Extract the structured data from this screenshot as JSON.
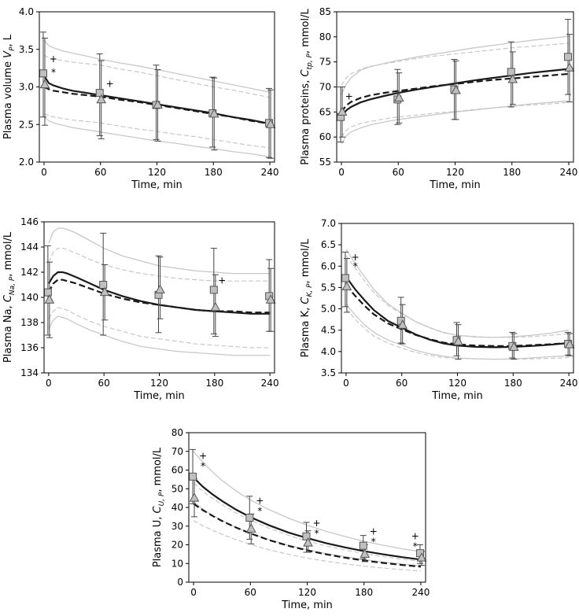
{
  "chart_data": [
    {
      "id": "vp",
      "type": "line",
      "ylabel": "Plasma volume Vₚ, L",
      "ylabel_base": "Plasma volume ",
      "ylabel_var": "V",
      "ylabel_sub": "P",
      "ylabel_tail": ", L",
      "xlabel": "Time, min",
      "xlim": [
        -5,
        245
      ],
      "ylim": [
        2.0,
        4.0
      ],
      "xticks": [
        0,
        60,
        120,
        180,
        240
      ],
      "yticks": [
        2.0,
        2.5,
        3.0,
        3.5,
        4.0
      ],
      "ytick_labels": [
        "2.0",
        "2.5",
        "3.0",
        "3.5",
        "4.0"
      ],
      "curves": {
        "x": [
          0,
          5,
          10,
          20,
          30,
          45,
          60,
          80,
          100,
          120,
          140,
          160,
          180,
          200,
          220,
          240
        ],
        "group1_mean": [
          3.15,
          3.05,
          3.02,
          2.98,
          2.95,
          2.92,
          2.89,
          2.85,
          2.81,
          2.77,
          2.73,
          2.69,
          2.65,
          2.6,
          2.56,
          2.51
        ],
        "group1_upper": [
          3.62,
          3.55,
          3.52,
          3.48,
          3.45,
          3.41,
          3.37,
          3.32,
          3.28,
          3.23,
          3.18,
          3.13,
          3.08,
          3.03,
          2.98,
          2.93
        ],
        "group1_lower": [
          2.6,
          2.55,
          2.52,
          2.49,
          2.46,
          2.43,
          2.4,
          2.36,
          2.32,
          2.28,
          2.25,
          2.21,
          2.18,
          2.14,
          2.11,
          2.07
        ],
        "group2_mean": [
          3.0,
          2.97,
          2.95,
          2.93,
          2.91,
          2.89,
          2.87,
          2.83,
          2.8,
          2.76,
          2.72,
          2.68,
          2.64,
          2.6,
          2.55,
          2.51
        ],
        "group2_upper": [
          3.42,
          3.39,
          3.37,
          3.35,
          3.33,
          3.31,
          3.29,
          3.24,
          3.2,
          3.15,
          3.1,
          3.05,
          3.0,
          2.96,
          2.91,
          2.86
        ],
        "group2_lower": [
          2.64,
          2.62,
          2.6,
          2.58,
          2.56,
          2.54,
          2.52,
          2.48,
          2.44,
          2.41,
          2.37,
          2.34,
          2.3,
          2.26,
          2.22,
          2.19
        ]
      },
      "square_points": {
        "x": [
          0,
          60,
          120,
          180,
          240
        ],
        "y": [
          3.18,
          2.92,
          2.76,
          2.65,
          2.52
        ],
        "err_low": [
          2.6,
          2.35,
          2.3,
          2.2,
          2.06
        ],
        "err_high": [
          3.73,
          3.44,
          3.29,
          3.13,
          2.98
        ]
      },
      "triangle_points": {
        "x": [
          0,
          60,
          120,
          180,
          240
        ],
        "y": [
          3.03,
          2.83,
          2.76,
          2.64,
          2.5
        ],
        "err_low": [
          2.49,
          2.31,
          2.28,
          2.16,
          2.05
        ],
        "err_high": [
          3.65,
          3.35,
          3.23,
          3.12,
          2.96
        ]
      },
      "annotations": [
        {
          "text": "+",
          "x": 10,
          "y": 3.33
        },
        {
          "text": "*",
          "x": 10,
          "y": 3.15
        },
        {
          "text": "+",
          "x": 70,
          "y": 3.0
        }
      ]
    },
    {
      "id": "ctp",
      "type": "line",
      "ylabel": "Plasma proteins, Cₜₚ,P, mmol/L",
      "ylabel_base": "Plasma proteins, ",
      "ylabel_var": "C",
      "ylabel_sub": "tp, P",
      "ylabel_tail": ", mmol/L",
      "xlabel": "Time, min",
      "xlim": [
        -5,
        245
      ],
      "ylim": [
        55,
        85
      ],
      "xticks": [
        0,
        60,
        120,
        180,
        240
      ],
      "yticks": [
        55,
        60,
        65,
        70,
        75,
        80,
        85
      ],
      "ytick_labels": [
        "55",
        "60",
        "65",
        "70",
        "75",
        "80",
        "85"
      ],
      "curves": {
        "x": [
          0,
          5,
          10,
          20,
          30,
          45,
          60,
          80,
          100,
          120,
          140,
          160,
          180,
          200,
          220,
          240
        ],
        "group1_mean": [
          63.8,
          65.3,
          66.0,
          66.9,
          67.5,
          68.2,
          68.8,
          69.5,
          70.1,
          70.7,
          71.3,
          71.8,
          72.3,
          72.8,
          73.2,
          73.6
        ],
        "group1_upper": [
          68.5,
          70.5,
          71.8,
          73.3,
          74.0,
          74.7,
          75.3,
          76.0,
          76.6,
          77.2,
          77.8,
          78.3,
          78.8,
          79.3,
          79.7,
          80.1
        ],
        "group1_lower": [
          58.6,
          60.2,
          61.0,
          61.8,
          62.4,
          63.0,
          63.5,
          64.0,
          64.5,
          65.0,
          65.4,
          65.8,
          66.2,
          66.6,
          66.9,
          67.2
        ],
        "group2_mean": [
          65.0,
          66.3,
          67.0,
          67.8,
          68.3,
          68.8,
          69.2,
          69.7,
          70.2,
          70.6,
          71.0,
          71.4,
          71.7,
          72.0,
          72.3,
          72.6
        ],
        "group2_upper": [
          70.3,
          71.8,
          72.6,
          73.5,
          74.1,
          74.6,
          75.1,
          75.7,
          76.2,
          76.6,
          77.0,
          77.4,
          77.8,
          78.1,
          78.4,
          78.7
        ],
        "group2_lower": [
          60.0,
          61.3,
          62.0,
          62.7,
          63.1,
          63.6,
          64.0,
          64.4,
          64.8,
          65.1,
          65.5,
          65.8,
          66.1,
          66.4,
          66.6,
          66.9
        ]
      },
      "square_points": {
        "x": [
          0,
          60,
          120,
          180,
          240
        ],
        "y": [
          64.0,
          67.5,
          69.5,
          73.0,
          76.0
        ],
        "err_low": [
          59.0,
          62.5,
          63.5,
          66.0,
          68.5
        ],
        "err_high": [
          70.0,
          73.5,
          75.5,
          79.0,
          83.5
        ]
      },
      "triangle_points": {
        "x": [
          0,
          60,
          120,
          180,
          240
        ],
        "y": [
          65.0,
          67.8,
          69.3,
          71.5,
          73.8
        ],
        "err_low": [
          60.0,
          62.8,
          63.5,
          66.5,
          67.0
        ],
        "err_high": [
          70.0,
          72.8,
          75.2,
          77.0,
          80.5
        ]
      },
      "annotations": [
        {
          "text": "+",
          "x": 8,
          "y": 67.5
        }
      ]
    },
    {
      "id": "cna",
      "type": "line",
      "ylabel": "Plasma Na, C_Na,P, mmol/L",
      "ylabel_base": "Plasma Na, ",
      "ylabel_var": "C",
      "ylabel_sub": "Na, P",
      "ylabel_tail": ", mmol/L",
      "xlabel": "Time, min",
      "xlim": [
        -5,
        245
      ],
      "ylim": [
        134,
        146
      ],
      "xticks": [
        0,
        60,
        120,
        180,
        240
      ],
      "yticks": [
        134,
        136,
        138,
        140,
        142,
        144,
        146
      ],
      "ytick_labels": [
        "134",
        "136",
        "138",
        "140",
        "142",
        "144",
        "146"
      ],
      "curves": {
        "x": [
          0,
          5,
          10,
          15,
          20,
          30,
          45,
          60,
          80,
          100,
          120,
          140,
          160,
          180,
          200,
          220,
          240
        ],
        "group1_mean": [
          141.1,
          141.7,
          142.0,
          142.0,
          141.9,
          141.6,
          141.1,
          140.6,
          140.1,
          139.7,
          139.4,
          139.2,
          139.0,
          138.9,
          138.8,
          138.7,
          138.7
        ],
        "group1_upper": [
          144.3,
          145.2,
          145.5,
          145.5,
          145.4,
          145.1,
          144.5,
          143.9,
          143.3,
          142.9,
          142.5,
          142.3,
          142.1,
          142.0,
          141.9,
          141.9,
          141.9
        ],
        "group1_lower": [
          137.5,
          138.2,
          138.5,
          138.4,
          138.3,
          137.9,
          137.4,
          137.0,
          136.5,
          136.1,
          135.9,
          135.7,
          135.6,
          135.5,
          135.4,
          135.4,
          135.4
        ],
        "group2_mean": [
          140.4,
          141.1,
          141.4,
          141.4,
          141.3,
          141.1,
          140.7,
          140.3,
          139.9,
          139.6,
          139.4,
          139.2,
          139.0,
          138.9,
          138.9,
          138.8,
          138.8
        ],
        "group2_upper": [
          142.8,
          143.6,
          143.9,
          143.9,
          143.8,
          143.5,
          143.0,
          142.6,
          142.2,
          141.9,
          141.7,
          141.5,
          141.4,
          141.3,
          141.3,
          141.3,
          141.3
        ],
        "group2_lower": [
          138.3,
          138.9,
          139.2,
          139.1,
          139.0,
          138.6,
          138.1,
          137.7,
          137.3,
          136.9,
          136.7,
          136.5,
          136.3,
          136.2,
          136.1,
          136.0,
          136.0
        ]
      },
      "square_points": {
        "x": [
          0,
          60,
          120,
          180,
          240
        ],
        "y": [
          140.4,
          141.0,
          140.2,
          140.6,
          140.1
        ],
        "err_low": [
          137.0,
          137.0,
          137.2,
          137.1,
          137.3
        ],
        "err_high": [
          144.1,
          145.1,
          143.3,
          143.9,
          143.0
        ]
      },
      "triangle_points": {
        "x": [
          0,
          60,
          120,
          180,
          240
        ],
        "y": [
          139.8,
          140.4,
          140.6,
          139.2,
          139.8
        ],
        "err_low": [
          136.8,
          138.2,
          138.3,
          136.9,
          137.3
        ],
        "err_high": [
          142.8,
          142.6,
          143.2,
          141.8,
          142.3
        ]
      },
      "annotations": [
        {
          "text": "+",
          "x": 188,
          "y": 141.1
        }
      ]
    },
    {
      "id": "ck",
      "type": "line",
      "ylabel": "Plasma K, C_K,P, mmol/L",
      "ylabel_base": "Plasma K, ",
      "ylabel_var": "C",
      "ylabel_sub": "K, P",
      "ylabel_tail": ", mmol/L",
      "xlabel": "Time, min",
      "xlim": [
        -5,
        245
      ],
      "ylim": [
        3.5,
        7.0
      ],
      "xticks": [
        0,
        60,
        120,
        180,
        240
      ],
      "yticks": [
        3.5,
        4.0,
        4.5,
        5.0,
        5.5,
        6.0,
        6.5,
        7.0
      ],
      "ytick_labels": [
        "3.5",
        "4.0",
        "4.5",
        "5.0",
        "5.5",
        "6.0",
        "6.5",
        "7.0"
      ],
      "curves": {
        "x": [
          0,
          10,
          20,
          30,
          45,
          60,
          75,
          90,
          105,
          120,
          140,
          160,
          180,
          200,
          220,
          240
        ],
        "group1_mean": [
          5.75,
          5.45,
          5.2,
          4.97,
          4.72,
          4.56,
          4.4,
          4.28,
          4.19,
          4.14,
          4.11,
          4.1,
          4.11,
          4.13,
          4.16,
          4.2
        ],
        "group1_upper": [
          6.4,
          6.05,
          5.75,
          5.45,
          5.12,
          4.9,
          4.7,
          4.56,
          4.44,
          4.38,
          4.34,
          4.33,
          4.35,
          4.38,
          4.43,
          4.5
        ],
        "group1_lower": [
          5.1,
          4.85,
          4.62,
          4.45,
          4.27,
          4.15,
          4.03,
          3.95,
          3.89,
          3.85,
          3.83,
          3.82,
          3.83,
          3.85,
          3.88,
          3.9
        ],
        "group2_mean": [
          5.55,
          5.3,
          5.07,
          4.87,
          4.66,
          4.52,
          4.39,
          4.29,
          4.21,
          4.17,
          4.14,
          4.13,
          4.13,
          4.15,
          4.17,
          4.2
        ],
        "group2_upper": [
          6.25,
          5.95,
          5.65,
          5.38,
          5.08,
          4.88,
          4.7,
          4.56,
          4.45,
          4.38,
          4.35,
          4.33,
          4.33,
          4.35,
          4.38,
          4.42
        ],
        "group2_lower": [
          5.0,
          4.75,
          4.54,
          4.36,
          4.2,
          4.08,
          3.98,
          3.91,
          3.86,
          3.84,
          3.83,
          3.82,
          3.82,
          3.83,
          3.84,
          3.86
        ]
      },
      "square_points": {
        "x": [
          0,
          60,
          120,
          180,
          240
        ],
        "y": [
          5.72,
          4.72,
          4.27,
          4.13,
          4.18
        ],
        "err_low": [
          5.05,
          4.2,
          3.9,
          3.85,
          3.92
        ],
        "err_high": [
          6.33,
          5.27,
          4.68,
          4.45,
          4.45
        ]
      },
      "triangle_points": {
        "x": [
          0,
          60,
          120,
          180,
          240
        ],
        "y": [
          5.52,
          4.62,
          4.23,
          4.1,
          4.16
        ],
        "err_low": [
          4.92,
          4.18,
          3.82,
          3.82,
          3.9
        ],
        "err_high": [
          6.18,
          5.1,
          4.63,
          4.42,
          4.42
        ]
      },
      "annotations": [
        {
          "text": "+",
          "x": 10,
          "y": 6.13
        },
        {
          "text": "*",
          "x": 10,
          "y": 5.92
        }
      ]
    },
    {
      "id": "cu",
      "type": "line",
      "ylabel": "Plasma U, C_U,P, mmol/L",
      "ylabel_base": "Plasma U, ",
      "ylabel_var": "C",
      "ylabel_sub": "U, P",
      "ylabel_tail": ", mmol/L",
      "xlabel": "Time, min",
      "xlim": [
        -5,
        245
      ],
      "ylim": [
        0,
        80
      ],
      "xticks": [
        0,
        60,
        120,
        180,
        240
      ],
      "yticks": [
        0,
        10,
        20,
        30,
        40,
        50,
        60,
        70,
        80
      ],
      "ytick_labels": [
        "0",
        "10",
        "20",
        "30",
        "40",
        "50",
        "60",
        "70",
        "80"
      ],
      "curves": {
        "x": [
          0,
          10,
          20,
          30,
          45,
          60,
          80,
          100,
          120,
          140,
          160,
          180,
          200,
          220,
          240
        ],
        "group1_mean": [
          56.0,
          51.0,
          47.0,
          43.5,
          38.8,
          34.8,
          30.4,
          26.6,
          23.6,
          20.9,
          18.6,
          16.6,
          14.9,
          13.4,
          12.1
        ],
        "group1_upper": [
          70.0,
          64.0,
          59.0,
          54.5,
          48.8,
          44.0,
          38.8,
          34.3,
          30.5,
          27.2,
          24.4,
          21.9,
          19.8,
          17.9,
          16.3
        ],
        "group1_lower": [
          43.0,
          39.0,
          35.8,
          33.0,
          29.3,
          26.2,
          22.7,
          19.8,
          17.4,
          15.3,
          13.6,
          12.1,
          10.8,
          9.7,
          8.7
        ],
        "group2_mean": [
          42.0,
          38.5,
          35.5,
          32.8,
          29.2,
          26.1,
          22.5,
          19.5,
          17.0,
          14.9,
          13.1,
          11.6,
          10.3,
          9.2,
          8.3
        ],
        "group2_upper": [
          53.0,
          48.5,
          44.8,
          41.5,
          37.0,
          33.2,
          28.8,
          25.1,
          22.0,
          19.4,
          17.2,
          15.3,
          13.7,
          12.3,
          11.1
        ],
        "group2_lower": [
          33.0,
          30.2,
          27.8,
          25.6,
          22.7,
          20.2,
          17.3,
          14.9,
          12.9,
          11.2,
          9.8,
          8.6,
          7.6,
          6.7,
          6.0
        ]
      },
      "square_points": {
        "x": [
          0,
          60,
          120,
          180,
          240
        ],
        "y": [
          56.5,
          34.5,
          24.5,
          19.5,
          15.5
        ],
        "err_low": [
          42.0,
          23.0,
          16.0,
          12.5,
          10.0
        ],
        "err_high": [
          71.0,
          46.0,
          32.0,
          25.0,
          20.0
        ]
      },
      "triangle_points": {
        "x": [
          0,
          60,
          120,
          180,
          240
        ],
        "y": [
          45.0,
          28.5,
          21.0,
          15.0,
          13.0
        ],
        "err_low": [
          35.0,
          20.5,
          16.0,
          11.0,
          9.0
        ],
        "err_high": [
          55.5,
          36.5,
          27.5,
          20.0,
          16.5
        ]
      },
      "annotations": [
        {
          "text": "+",
          "x": 10,
          "y": 66.0
        },
        {
          "text": "*",
          "x": 10,
          "y": 60.5
        },
        {
          "text": "+",
          "x": 70,
          "y": 42.0
        },
        {
          "text": "*",
          "x": 70,
          "y": 36.5
        },
        {
          "text": "+",
          "x": 130,
          "y": 30.0
        },
        {
          "text": "*",
          "x": 130,
          "y": 24.5
        },
        {
          "text": "+",
          "x": 190,
          "y": 25.5
        },
        {
          "text": "*",
          "x": 190,
          "y": 20.0
        },
        {
          "text": "+",
          "x": 234,
          "y": 23.0
        },
        {
          "text": "*",
          "x": 234,
          "y": 17.5
        }
      ]
    }
  ],
  "style": {
    "mean_color": "#1a1a1a",
    "band_color": "#c8c8c8",
    "marker_fill": "#c0c0c0",
    "marker_stroke": "#555555"
  }
}
